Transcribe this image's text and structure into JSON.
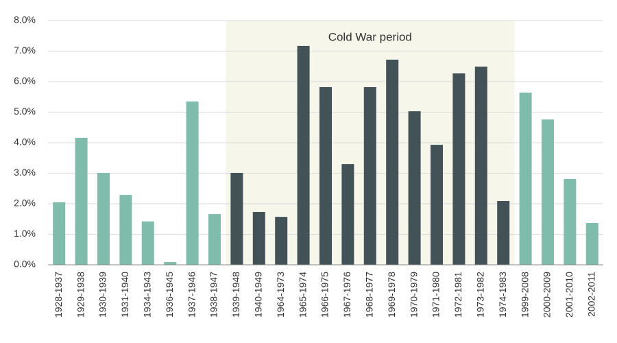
{
  "chart_data": {
    "type": "bar",
    "categories": [
      "1928-1937",
      "1929-1938",
      "1930-1939",
      "1931-1940",
      "1934-1943",
      "1936-1945",
      "1937-1946",
      "1938-1947",
      "1939-1948",
      "1940-1949",
      "1964-1973",
      "1965-1974",
      "1966-1975",
      "1967-1976",
      "1968-1977",
      "1969-1978",
      "1970-1979",
      "1971-1980",
      "1972-1981",
      "1973-1982",
      "1974-1983",
      "1999-2008",
      "2000-2009",
      "2001-2010",
      "2002-2011"
    ],
    "values": [
      2.05,
      4.16,
      3.01,
      2.29,
      1.42,
      0.09,
      5.35,
      1.66,
      3.01,
      1.73,
      1.57,
      7.17,
      5.82,
      3.3,
      5.82,
      6.72,
      5.03,
      3.93,
      6.27,
      6.49,
      2.09,
      5.64,
      4.76,
      2.81,
      1.37
    ],
    "colors": [
      "#80bcab",
      "#80bcab",
      "#80bcab",
      "#80bcab",
      "#80bcab",
      "#80bcab",
      "#80bcab",
      "#80bcab",
      "#425257",
      "#425257",
      "#425257",
      "#425257",
      "#425257",
      "#425257",
      "#425257",
      "#425257",
      "#425257",
      "#425257",
      "#425257",
      "#425257",
      "#425257",
      "#80bcab",
      "#80bcab",
      "#80bcab",
      "#80bcab"
    ],
    "shaded_region": {
      "from": "1939-1948",
      "to": "1974-1983",
      "label": "Cold War period",
      "color": "#f6f6ea"
    },
    "ylim": [
      0,
      8
    ],
    "yticks": [
      {
        "value": 0,
        "label": "0.0%"
      },
      {
        "value": 1,
        "label": "1.0%"
      },
      {
        "value": 2,
        "label": "2.0%"
      },
      {
        "value": 3,
        "label": "3.0%"
      },
      {
        "value": 4,
        "label": "4.0%"
      },
      {
        "value": 5,
        "label": "5.0%"
      },
      {
        "value": 6,
        "label": "6.0%"
      },
      {
        "value": 7,
        "label": "7.0%"
      },
      {
        "value": 8,
        "label": "8.0%"
      }
    ],
    "grid": true
  }
}
